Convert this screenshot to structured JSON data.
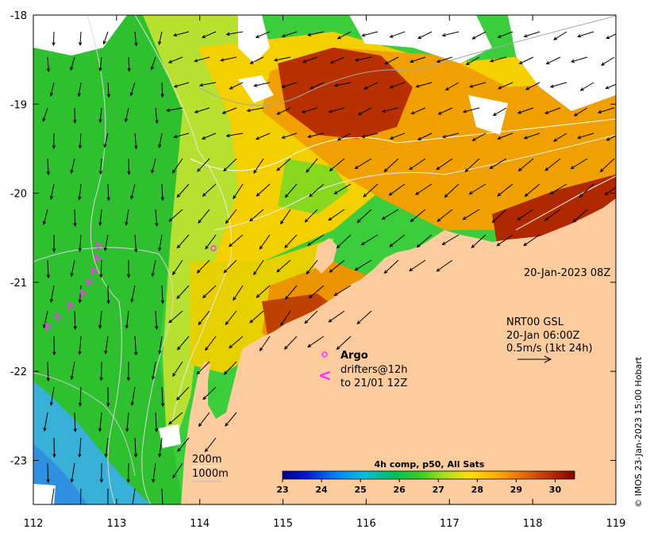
{
  "map": {
    "lon_ticks": [
      "112",
      "113",
      "114",
      "115",
      "116",
      "117",
      "118",
      "119"
    ],
    "lat_ticks": [
      "-18",
      "-19",
      "-20",
      "-21",
      "-22",
      "-23"
    ],
    "timestamp": "20-Jan-2023 08Z",
    "currents_source": "NRT00 GSL",
    "currents_time": "20-Jan 06:00Z",
    "currents_scale": "0.5m/s (1kt 24h)",
    "argo_label": "Argo",
    "drifters_line1": "drifters@12h",
    "drifters_line2": "to 21/01 12Z",
    "drifter_symbol": "<",
    "isobath_200": "200m",
    "isobath_1000": "1000m",
    "colorbar_title": "4h comp, p50, All Sats",
    "colorbar_ticks": [
      "23",
      "24",
      "25",
      "26",
      "27",
      "28",
      "29",
      "30"
    ],
    "colorbar_min": 23,
    "colorbar_max": 30.5,
    "copyright": "© IMOS 23-Jan-2023 15:00 Hobart",
    "colors": {
      "land": "#fccc9e",
      "warm": "#a02000",
      "cool": "#1ec01e",
      "drifter": "#ff30ff"
    }
  }
}
